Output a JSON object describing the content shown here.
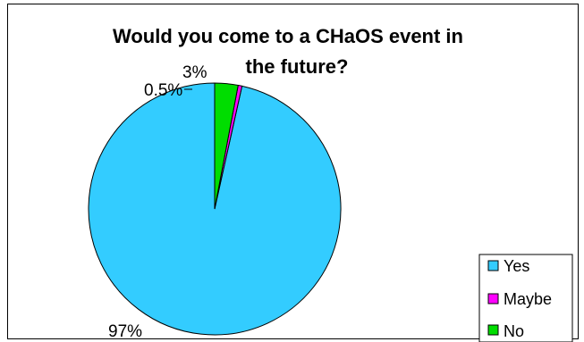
{
  "chart_data": {
    "type": "pie",
    "title_lines": [
      "Would you come to a CHaOS event in",
      "the future?"
    ],
    "slices": [
      {
        "name": "Yes",
        "value": 97,
        "label": "97%",
        "color": "#33CCFF"
      },
      {
        "name": "Maybe",
        "value": 0.5,
        "label": "0.5%",
        "color": "#FF00FF"
      },
      {
        "name": "No",
        "value": 3,
        "label": "3%",
        "color": "#00DD00"
      }
    ],
    "legend": [
      "Yes",
      "Maybe",
      "No"
    ],
    "legend_position": "bottom-right"
  }
}
